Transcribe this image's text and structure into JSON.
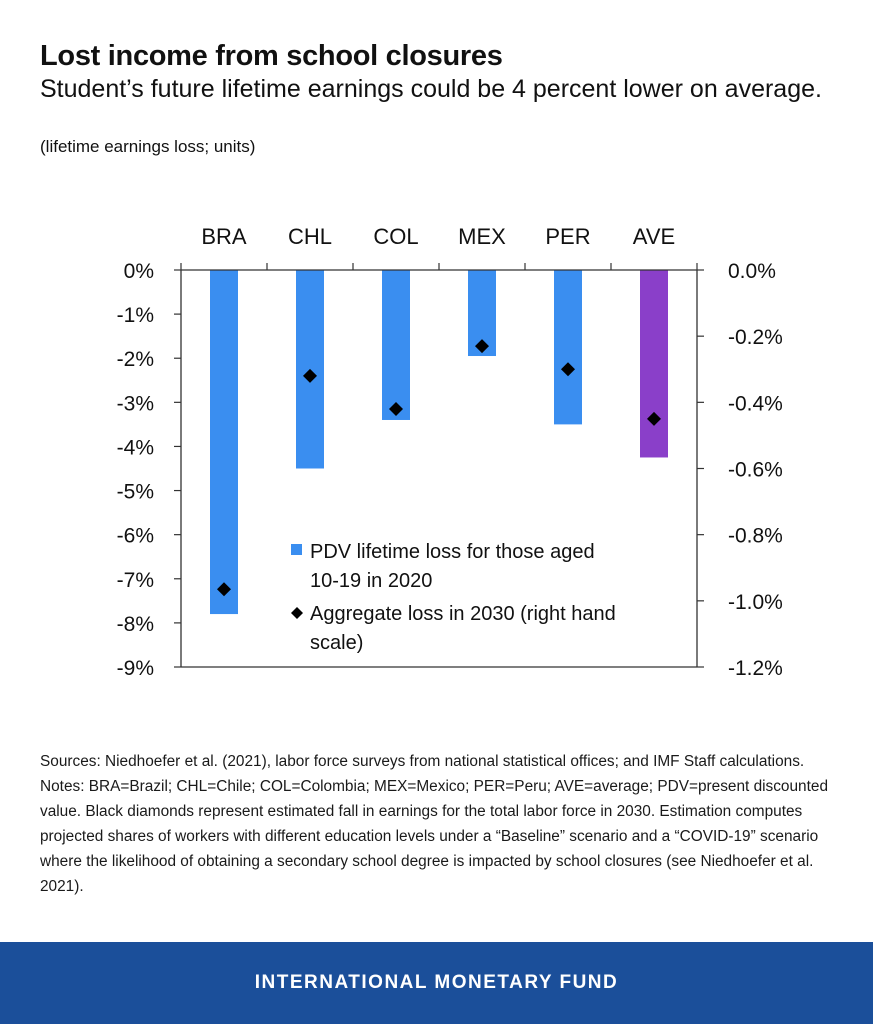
{
  "header": {
    "title": "Lost income from school closures",
    "subtitle": "Student’s future lifetime earnings could be 4 percent lower on average.",
    "units": "(lifetime earnings loss; units)"
  },
  "chart_data": {
    "type": "bar",
    "categories": [
      "BRA",
      "CHL",
      "COL",
      "MEX",
      "PER",
      "AVE"
    ],
    "series": [
      {
        "name": "PDV lifetime loss for those aged 10-19 in 2020",
        "kind": "bar",
        "axis": "left",
        "values": [
          -7.8,
          -4.5,
          -3.4,
          -1.95,
          -3.5,
          -4.25
        ],
        "colors": [
          "#3a8ef0",
          "#3a8ef0",
          "#3a8ef0",
          "#3a8ef0",
          "#3a8ef0",
          "#8a3fc9"
        ]
      },
      {
        "name": "Aggregate loss in 2030 (right hand scale)",
        "kind": "marker",
        "marker": "diamond",
        "axis": "right",
        "values": [
          -0.965,
          -0.32,
          -0.42,
          -0.23,
          -0.3,
          -0.45
        ],
        "color": "#000000"
      }
    ],
    "y_left": {
      "range": [
        -9,
        0
      ],
      "ticks": [
        0,
        -1,
        -2,
        -3,
        -4,
        -5,
        -6,
        -7,
        -8,
        -9
      ],
      "tick_labels": [
        "0%",
        "-1%",
        "-2%",
        "-3%",
        "-4%",
        "-5%",
        "-6%",
        "-7%",
        "-8%",
        "-9%"
      ]
    },
    "y_right": {
      "range": [
        -1.2,
        0
      ],
      "ticks": [
        0,
        -0.2,
        -0.4,
        -0.6,
        -0.8,
        -1.0,
        -1.2
      ],
      "tick_labels": [
        "0.0%",
        "-0.2%",
        "-0.4%",
        "-0.6%",
        "-0.8%",
        "-1.0%",
        "-1.2%"
      ]
    },
    "x_axis_position": "top",
    "grid": false,
    "legend_position": "lower-center",
    "xlabel": "",
    "ylabel": ""
  },
  "notes": {
    "sources": "Sources: Niedhoefer et al. (2021), labor force surveys from national statistical offices; and IMF Staff calculations.",
    "notes": "Notes:  BRA=Brazil; CHL=Chile; COL=Colombia; MEX=Mexico; PER=Peru; AVE=average; PDV=present discounted value. Black diamonds represent estimated fall in earnings for the total labor force in 2030. Estimation computes projected shares of workers with different education levels under a “Baseline” scenario and a “COVID-19” scenario where the likelihood of obtaining a secondary school degree is impacted by school closures (see Niedhoefer et al. 2021)."
  },
  "footer": {
    "label": "INTERNATIONAL MONETARY FUND",
    "background": "#1b4f9a"
  }
}
